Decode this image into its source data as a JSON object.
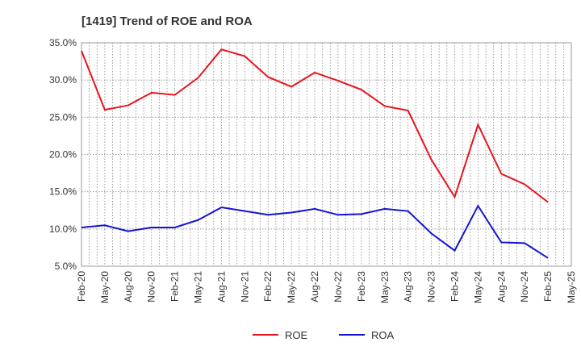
{
  "chart_data": {
    "type": "line",
    "title": "[1419]  Trend of ROE and ROA",
    "xlabel": "",
    "ylabel": "",
    "ylim": [
      5,
      35
    ],
    "y_ticks": [
      5,
      10,
      15,
      20,
      25,
      30,
      35
    ],
    "y_tick_labels": [
      "5.0%",
      "10.0%",
      "15.0%",
      "20.0%",
      "25.0%",
      "30.0%",
      "35.0%"
    ],
    "x_tick_labels": [
      "Feb-20",
      "May-20",
      "Aug-20",
      "Nov-20",
      "Feb-21",
      "May-21",
      "Aug-21",
      "Nov-21",
      "Feb-22",
      "May-22",
      "Aug-22",
      "Nov-22",
      "Feb-23",
      "May-23",
      "Aug-23",
      "Nov-23",
      "Feb-24",
      "May-24",
      "Aug-24",
      "Nov-24",
      "Feb-25",
      "May-25"
    ],
    "x": [
      "Feb-20",
      "May-20",
      "Aug-20",
      "Nov-20",
      "Feb-21",
      "May-21",
      "Aug-21",
      "Nov-21",
      "Feb-22",
      "May-22",
      "Aug-22",
      "Nov-22",
      "Feb-23",
      "May-23",
      "Aug-23",
      "Nov-23",
      "Feb-24",
      "May-24",
      "Aug-24",
      "Nov-24",
      "Feb-25"
    ],
    "grid": true,
    "legend_position": "bottom-center",
    "series": [
      {
        "name": "ROE",
        "color": "#e8141e",
        "values": [
          33.9,
          26.0,
          26.6,
          28.3,
          28.0,
          30.3,
          34.1,
          33.2,
          30.4,
          29.1,
          31.0,
          29.9,
          28.7,
          26.5,
          25.9,
          19.3,
          14.3,
          24.0,
          17.4,
          16.0,
          13.6
        ]
      },
      {
        "name": "ROA",
        "color": "#1414d2",
        "values": [
          10.2,
          10.5,
          9.7,
          10.2,
          10.2,
          11.2,
          12.9,
          12.4,
          11.9,
          12.2,
          12.7,
          11.9,
          12.0,
          12.7,
          12.4,
          9.4,
          7.1,
          13.1,
          8.2,
          8.1,
          6.1
        ]
      }
    ]
  }
}
